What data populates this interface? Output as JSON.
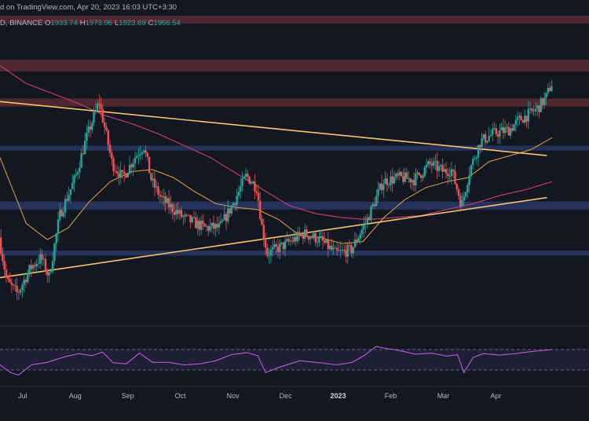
{
  "header": {
    "published": "d on TradingView.com, Apr 20, 2023 16:03 UTC+3:30",
    "symbol": "D, BINANCE",
    "ohlc": [
      {
        "k": "O",
        "v": "1933.74"
      },
      {
        "k": "H",
        "v": "1973.06"
      },
      {
        "k": "L",
        "v": "1923.69"
      },
      {
        "k": "C",
        "v": "1966.54"
      }
    ]
  },
  "colors": {
    "background": "#131722",
    "bull": "#26a69a",
    "bear": "#ef5350",
    "supply_zone": "#5a2a33",
    "support_zone": "#2a3a6b",
    "trendline": "#f5c46b",
    "ma_short": "#e8a23c",
    "ma_long": "#c23a6a",
    "rsi_line": "#b45edb"
  },
  "chart_data": {
    "type": "candlestick",
    "title": "",
    "x_ticks": [
      "Jul",
      "Aug",
      "Sep",
      "Oct",
      "Nov",
      "Dec",
      "2023",
      "Feb",
      "Mar",
      "Apr"
    ],
    "x_ticks_bold": [
      "2023"
    ],
    "x_range_months": [
      -0.4,
      10.8
    ],
    "y_range": [
      850,
      2350
    ],
    "price_path": [
      [
        -0.4,
        1280
      ],
      [
        -0.25,
        1060
      ],
      [
        -0.05,
        1000
      ],
      [
        0.2,
        1130
      ],
      [
        0.4,
        1180
      ],
      [
        0.55,
        1080
      ],
      [
        0.75,
        1390
      ],
      [
        1.05,
        1580
      ],
      [
        1.25,
        1770
      ],
      [
        1.5,
        1960
      ],
      [
        1.6,
        1840
      ],
      [
        1.75,
        1650
      ],
      [
        1.95,
        1580
      ],
      [
        2.2,
        1690
      ],
      [
        2.35,
        1740
      ],
      [
        2.5,
        1560
      ],
      [
        2.7,
        1470
      ],
      [
        3.1,
        1380
      ],
      [
        3.5,
        1330
      ],
      [
        3.8,
        1330
      ],
      [
        4.05,
        1450
      ],
      [
        4.3,
        1590
      ],
      [
        4.5,
        1530
      ],
      [
        4.6,
        1330
      ],
      [
        4.7,
        1200
      ],
      [
        5.0,
        1240
      ],
      [
        5.4,
        1300
      ],
      [
        5.7,
        1270
      ],
      [
        6.0,
        1200
      ],
      [
        6.3,
        1220
      ],
      [
        6.6,
        1370
      ],
      [
        6.9,
        1560
      ],
      [
        7.2,
        1580
      ],
      [
        7.5,
        1570
      ],
      [
        7.8,
        1650
      ],
      [
        8.05,
        1610
      ],
      [
        8.2,
        1620
      ],
      [
        8.4,
        1440
      ],
      [
        8.55,
        1620
      ],
      [
        8.75,
        1760
      ],
      [
        9.0,
        1800
      ],
      [
        9.3,
        1820
      ],
      [
        9.5,
        1870
      ],
      [
        9.7,
        1900
      ],
      [
        9.85,
        1930
      ],
      [
        10.0,
        1980
      ],
      [
        10.1,
        2050
      ]
    ],
    "ma_short_path": [
      [
        -0.4,
        1680
      ],
      [
        0.1,
        1350
      ],
      [
        0.5,
        1270
      ],
      [
        0.9,
        1330
      ],
      [
        1.3,
        1460
      ],
      [
        1.7,
        1560
      ],
      [
        2.1,
        1610
      ],
      [
        2.5,
        1620
      ],
      [
        2.9,
        1580
      ],
      [
        3.3,
        1510
      ],
      [
        3.7,
        1450
      ],
      [
        4.1,
        1430
      ],
      [
        4.5,
        1420
      ],
      [
        4.9,
        1370
      ],
      [
        5.3,
        1290
      ],
      [
        5.7,
        1280
      ],
      [
        6.1,
        1250
      ],
      [
        6.5,
        1260
      ],
      [
        6.9,
        1380
      ],
      [
        7.3,
        1470
      ],
      [
        7.7,
        1530
      ],
      [
        8.1,
        1560
      ],
      [
        8.5,
        1580
      ],
      [
        8.9,
        1660
      ],
      [
        9.3,
        1690
      ],
      [
        9.7,
        1720
      ],
      [
        10.1,
        1780
      ]
    ],
    "ma_long_path": [
      [
        -0.4,
        2140
      ],
      [
        0.1,
        2050
      ],
      [
        0.6,
        2000
      ],
      [
        1.1,
        1950
      ],
      [
        1.6,
        1890
      ],
      [
        2.1,
        1850
      ],
      [
        2.6,
        1800
      ],
      [
        3.1,
        1740
      ],
      [
        3.6,
        1680
      ],
      [
        4.1,
        1600
      ],
      [
        4.6,
        1520
      ],
      [
        5.1,
        1440
      ],
      [
        5.6,
        1400
      ],
      [
        6.1,
        1380
      ],
      [
        6.6,
        1370
      ],
      [
        7.1,
        1380
      ],
      [
        7.6,
        1390
      ],
      [
        8.1,
        1420
      ],
      [
        8.6,
        1450
      ],
      [
        9.1,
        1490
      ],
      [
        9.6,
        1520
      ],
      [
        10.1,
        1560
      ]
    ],
    "supply_zones": [
      [
        2350,
        2390
      ],
      [
        2110,
        2170
      ],
      [
        1935,
        1975
      ]
    ],
    "support_zones": [
      [
        1715,
        1740
      ],
      [
        1420,
        1460
      ],
      [
        1190,
        1215
      ]
    ],
    "trendlines": [
      {
        "from": [
          -0.4,
          1960
        ],
        "to": [
          10.0,
          1690
        ]
      },
      {
        "from": [
          -0.4,
          1080
        ],
        "to": [
          10.0,
          1480
        ]
      }
    ],
    "rsi": {
      "y_range": [
        10,
        90
      ],
      "levels": [
        70,
        30
      ],
      "path": [
        [
          -0.4,
          40
        ],
        [
          -0.2,
          25
        ],
        [
          -0.05,
          20
        ],
        [
          0.2,
          40
        ],
        [
          0.5,
          45
        ],
        [
          0.8,
          55
        ],
        [
          1.1,
          62
        ],
        [
          1.35,
          58
        ],
        [
          1.55,
          65
        ],
        [
          1.75,
          44
        ],
        [
          2.0,
          42
        ],
        [
          2.25,
          63
        ],
        [
          2.5,
          45
        ],
        [
          2.8,
          45
        ],
        [
          3.1,
          40
        ],
        [
          3.4,
          42
        ],
        [
          3.7,
          48
        ],
        [
          4.0,
          60
        ],
        [
          4.3,
          64
        ],
        [
          4.5,
          58
        ],
        [
          4.65,
          25
        ],
        [
          4.9,
          35
        ],
        [
          5.3,
          48
        ],
        [
          5.7,
          44
        ],
        [
          6.0,
          40
        ],
        [
          6.3,
          45
        ],
        [
          6.55,
          60
        ],
        [
          6.75,
          76
        ],
        [
          6.9,
          73
        ],
        [
          7.2,
          68
        ],
        [
          7.5,
          61
        ],
        [
          7.8,
          63
        ],
        [
          8.1,
          57
        ],
        [
          8.3,
          60
        ],
        [
          8.42,
          25
        ],
        [
          8.6,
          55
        ],
        [
          8.8,
          62
        ],
        [
          9.1,
          59
        ],
        [
          9.4,
          62
        ],
        [
          9.7,
          66
        ],
        [
          10.1,
          70
        ]
      ]
    }
  }
}
